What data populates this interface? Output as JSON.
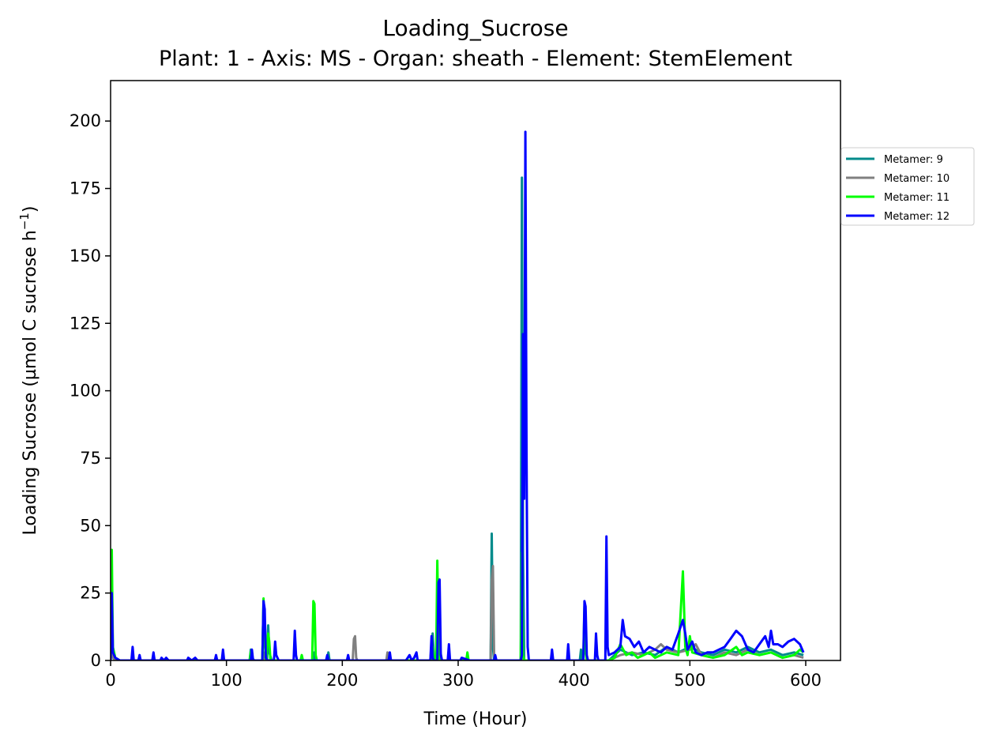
{
  "chart_data": {
    "type": "line",
    "title": "Loading_Sucrose",
    "subtitle": "Plant: 1 - Axis: MS - Organ: sheath - Element: StemElement",
    "xlabel": "Time (Hour)",
    "ylabel": "Loading Sucrose (µmol C sucrose h",
    "ylabel_sup": "−1",
    "ylabel_close": ")",
    "xlim": [
      0,
      630
    ],
    "ylim": [
      0,
      215
    ],
    "xticks": [
      0,
      100,
      200,
      300,
      400,
      500,
      600
    ],
    "yticks": [
      0,
      25,
      50,
      75,
      100,
      125,
      150,
      175,
      200
    ],
    "grid": false,
    "legend_position": "right-outside-top",
    "series": [
      {
        "name": "Metamer: 9",
        "color": "#008b8b",
        "points": [
          [
            0,
            0
          ],
          [
            1,
            26
          ],
          [
            2,
            4
          ],
          [
            4,
            1
          ],
          [
            8,
            0
          ],
          [
            60,
            0
          ],
          [
            120,
            0
          ],
          [
            121,
            4
          ],
          [
            122,
            1
          ],
          [
            124,
            0
          ],
          [
            131,
            0
          ],
          [
            132,
            22
          ],
          [
            133,
            6
          ],
          [
            135,
            0
          ],
          [
            136,
            13
          ],
          [
            137,
            3
          ],
          [
            139,
            0
          ],
          [
            160,
            0
          ],
          [
            175,
            0
          ],
          [
            176,
            3
          ],
          [
            177,
            0
          ],
          [
            187,
            0
          ],
          [
            188,
            3
          ],
          [
            189,
            0
          ],
          [
            240,
            0
          ],
          [
            241,
            2
          ],
          [
            242,
            0
          ],
          [
            277,
            0
          ],
          [
            278,
            10
          ],
          [
            279,
            2
          ],
          [
            281,
            0
          ],
          [
            283,
            30
          ],
          [
            284,
            5
          ],
          [
            286,
            0
          ],
          [
            328,
            0
          ],
          [
            329,
            47
          ],
          [
            330,
            5
          ],
          [
            331,
            0
          ],
          [
            354,
            0
          ],
          [
            355,
            179
          ],
          [
            356,
            40
          ],
          [
            357,
            0
          ],
          [
            359,
            0
          ],
          [
            380,
            0
          ],
          [
            405,
            0
          ],
          [
            406,
            4
          ],
          [
            407,
            0
          ],
          [
            430,
            0
          ],
          [
            440,
            4
          ],
          [
            450,
            2
          ],
          [
            460,
            3
          ],
          [
            470,
            2
          ],
          [
            480,
            5
          ],
          [
            490,
            3
          ],
          [
            500,
            5
          ],
          [
            510,
            3
          ],
          [
            520,
            2
          ],
          [
            530,
            4
          ],
          [
            540,
            3
          ],
          [
            550,
            5
          ],
          [
            560,
            3
          ],
          [
            570,
            4
          ],
          [
            580,
            2
          ],
          [
            590,
            3
          ],
          [
            598,
            2
          ]
        ]
      },
      {
        "name": "Metamer: 10",
        "color": "#808080",
        "points": [
          [
            0,
            0
          ],
          [
            1,
            8
          ],
          [
            2,
            1
          ],
          [
            4,
            0
          ],
          [
            120,
            0
          ],
          [
            132,
            0
          ],
          [
            133,
            3
          ],
          [
            134,
            0
          ],
          [
            209,
            0
          ],
          [
            210,
            8
          ],
          [
            211,
            9
          ],
          [
            212,
            1
          ],
          [
            213,
            0
          ],
          [
            238,
            0
          ],
          [
            239,
            3
          ],
          [
            240,
            0
          ],
          [
            276,
            0
          ],
          [
            277,
            6
          ],
          [
            278,
            1
          ],
          [
            279,
            0
          ],
          [
            328,
            0
          ],
          [
            329,
            30
          ],
          [
            330,
            35
          ],
          [
            331,
            2
          ],
          [
            332,
            0
          ],
          [
            354,
            0
          ],
          [
            355,
            12
          ],
          [
            356,
            0
          ],
          [
            400,
            0
          ],
          [
            430,
            0
          ],
          [
            440,
            2
          ],
          [
            450,
            3
          ],
          [
            460,
            2
          ],
          [
            470,
            4
          ],
          [
            475,
            6
          ],
          [
            480,
            4
          ],
          [
            490,
            3
          ],
          [
            500,
            4
          ],
          [
            505,
            6
          ],
          [
            510,
            2
          ],
          [
            520,
            1
          ],
          [
            530,
            3
          ],
          [
            540,
            2
          ],
          [
            550,
            4
          ],
          [
            560,
            2
          ],
          [
            570,
            3
          ],
          [
            580,
            1
          ],
          [
            590,
            2
          ],
          [
            598,
            1
          ]
        ]
      },
      {
        "name": "Metamer: 11",
        "color": "#00ff00",
        "points": [
          [
            0,
            0
          ],
          [
            1,
            41
          ],
          [
            2,
            5
          ],
          [
            4,
            1
          ],
          [
            8,
            0
          ],
          [
            120,
            0
          ],
          [
            121,
            3
          ],
          [
            122,
            0
          ],
          [
            131,
            0
          ],
          [
            132,
            23
          ],
          [
            133,
            8
          ],
          [
            134,
            0
          ],
          [
            136,
            10
          ],
          [
            137,
            7
          ],
          [
            138,
            0
          ],
          [
            164,
            0
          ],
          [
            165,
            2
          ],
          [
            166,
            0
          ],
          [
            174,
            0
          ],
          [
            175,
            22
          ],
          [
            176,
            21
          ],
          [
            177,
            2
          ],
          [
            178,
            0
          ],
          [
            277,
            0
          ],
          [
            278,
            5
          ],
          [
            279,
            0
          ],
          [
            281,
            0
          ],
          [
            282,
            37
          ],
          [
            283,
            10
          ],
          [
            284,
            0
          ],
          [
            307,
            0
          ],
          [
            308,
            3
          ],
          [
            309,
            0
          ],
          [
            354,
            0
          ],
          [
            355,
            40
          ],
          [
            356,
            2
          ],
          [
            357,
            0
          ],
          [
            408,
            0
          ],
          [
            409,
            20
          ],
          [
            410,
            3
          ],
          [
            411,
            0
          ],
          [
            430,
            0
          ],
          [
            435,
            1
          ],
          [
            440,
            6
          ],
          [
            445,
            2
          ],
          [
            450,
            3
          ],
          [
            455,
            1
          ],
          [
            460,
            2
          ],
          [
            465,
            3
          ],
          [
            470,
            1
          ],
          [
            480,
            3
          ],
          [
            490,
            2
          ],
          [
            494,
            33
          ],
          [
            496,
            5
          ],
          [
            498,
            2
          ],
          [
            500,
            9
          ],
          [
            502,
            3
          ],
          [
            510,
            2
          ],
          [
            520,
            1
          ],
          [
            530,
            2
          ],
          [
            540,
            5
          ],
          [
            545,
            2
          ],
          [
            550,
            3
          ],
          [
            560,
            2
          ],
          [
            570,
            3
          ],
          [
            580,
            1
          ],
          [
            590,
            2
          ],
          [
            595,
            4
          ],
          [
            598,
            3
          ]
        ]
      },
      {
        "name": "Metamer: 12",
        "color": "#0000ff",
        "points": [
          [
            0,
            0
          ],
          [
            1,
            25
          ],
          [
            2,
            3
          ],
          [
            4,
            1
          ],
          [
            8,
            0
          ],
          [
            18,
            0
          ],
          [
            19,
            5
          ],
          [
            20,
            0
          ],
          [
            24,
            0
          ],
          [
            25,
            2
          ],
          [
            26,
            0
          ],
          [
            36,
            0
          ],
          [
            37,
            3
          ],
          [
            38,
            0
          ],
          [
            43,
            0
          ],
          [
            44,
            1
          ],
          [
            46,
            0
          ],
          [
            48,
            1
          ],
          [
            50,
            0
          ],
          [
            66,
            0
          ],
          [
            67,
            1
          ],
          [
            70,
            0
          ],
          [
            73,
            1
          ],
          [
            75,
            0
          ],
          [
            90,
            0
          ],
          [
            91,
            2
          ],
          [
            92,
            0
          ],
          [
            96,
            0
          ],
          [
            97,
            4
          ],
          [
            98,
            0
          ],
          [
            121,
            0
          ],
          [
            122,
            4
          ],
          [
            123,
            0
          ],
          [
            131,
            0
          ],
          [
            132,
            22
          ],
          [
            133,
            19
          ],
          [
            134,
            1
          ],
          [
            135,
            0
          ],
          [
            141,
            0
          ],
          [
            142,
            7
          ],
          [
            143,
            2
          ],
          [
            145,
            0
          ],
          [
            158,
            0
          ],
          [
            159,
            11
          ],
          [
            160,
            2
          ],
          [
            161,
            0
          ],
          [
            186,
            0
          ],
          [
            187,
            2
          ],
          [
            188,
            0
          ],
          [
            204,
            0
          ],
          [
            205,
            2
          ],
          [
            206,
            0
          ],
          [
            240,
            0
          ],
          [
            241,
            3
          ],
          [
            242,
            0
          ],
          [
            255,
            0
          ],
          [
            258,
            2
          ],
          [
            260,
            0
          ],
          [
            262,
            1
          ],
          [
            264,
            3
          ],
          [
            265,
            0
          ],
          [
            276,
            0
          ],
          [
            277,
            9
          ],
          [
            278,
            1
          ],
          [
            279,
            0
          ],
          [
            282,
            0
          ],
          [
            283,
            29
          ],
          [
            284,
            30
          ],
          [
            285,
            2
          ],
          [
            286,
            0
          ],
          [
            291,
            0
          ],
          [
            292,
            6
          ],
          [
            293,
            0
          ],
          [
            302,
            0
          ],
          [
            303,
            1
          ],
          [
            310,
            0
          ],
          [
            331,
            0
          ],
          [
            332,
            2
          ],
          [
            333,
            0
          ],
          [
            354,
            0
          ],
          [
            355,
            2
          ],
          [
            356,
            121
          ],
          [
            357,
            60
          ],
          [
            358,
            196
          ],
          [
            359,
            80
          ],
          [
            360,
            5
          ],
          [
            361,
            0
          ],
          [
            380,
            0
          ],
          [
            381,
            4
          ],
          [
            382,
            0
          ],
          [
            394,
            0
          ],
          [
            395,
            6
          ],
          [
            396,
            0
          ],
          [
            408,
            0
          ],
          [
            409,
            22
          ],
          [
            410,
            20
          ],
          [
            411,
            2
          ],
          [
            412,
            0
          ],
          [
            418,
            0
          ],
          [
            419,
            10
          ],
          [
            420,
            2
          ],
          [
            421,
            0
          ],
          [
            427,
            0
          ],
          [
            428,
            46
          ],
          [
            429,
            5
          ],
          [
            430,
            2
          ],
          [
            435,
            3
          ],
          [
            440,
            5
          ],
          [
            442,
            15
          ],
          [
            444,
            9
          ],
          [
            448,
            8
          ],
          [
            452,
            5
          ],
          [
            456,
            7
          ],
          [
            460,
            3
          ],
          [
            465,
            5
          ],
          [
            470,
            4
          ],
          [
            475,
            3
          ],
          [
            480,
            5
          ],
          [
            485,
            4
          ],
          [
            490,
            10
          ],
          [
            494,
            15
          ],
          [
            496,
            10
          ],
          [
            498,
            4
          ],
          [
            502,
            7
          ],
          [
            505,
            3
          ],
          [
            510,
            2
          ],
          [
            515,
            3
          ],
          [
            520,
            3
          ],
          [
            525,
            4
          ],
          [
            530,
            5
          ],
          [
            535,
            8
          ],
          [
            540,
            11
          ],
          [
            545,
            9
          ],
          [
            550,
            4
          ],
          [
            555,
            3
          ],
          [
            560,
            6
          ],
          [
            565,
            9
          ],
          [
            568,
            5
          ],
          [
            570,
            11
          ],
          [
            572,
            6
          ],
          [
            576,
            6
          ],
          [
            580,
            5
          ],
          [
            585,
            7
          ],
          [
            590,
            8
          ],
          [
            595,
            6
          ],
          [
            598,
            3
          ]
        ]
      }
    ]
  }
}
